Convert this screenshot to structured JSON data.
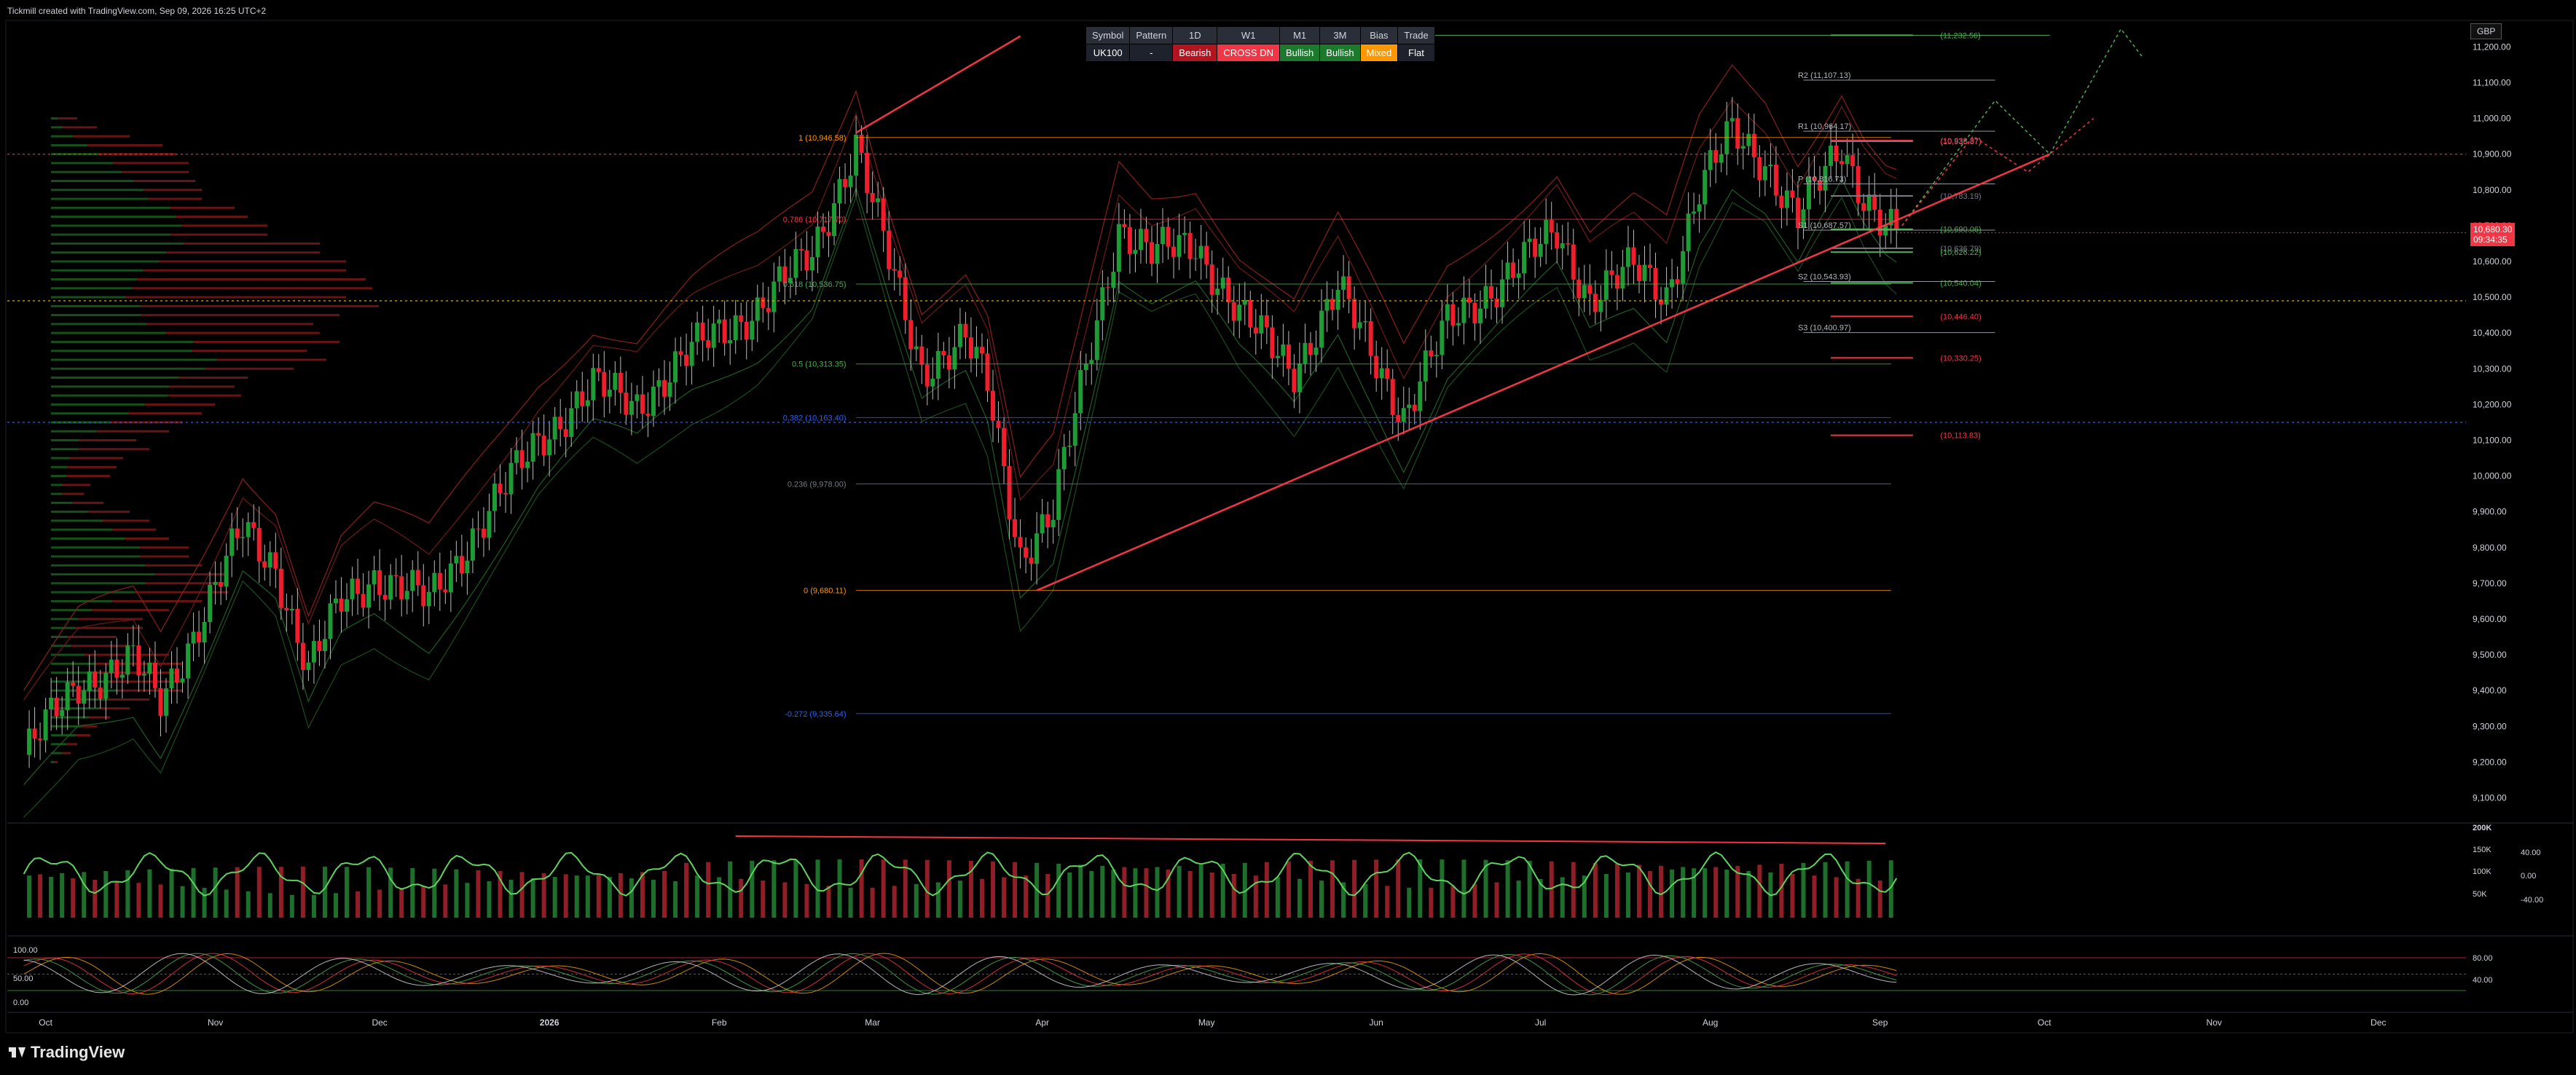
{
  "header": {
    "credit": "Tickmill created with TradingView.com, Sep 09, 2026 16:25 UTC+2"
  },
  "currency": "GBP",
  "status_table": {
    "headers": [
      "Symbol",
      "Pattern",
      "1D",
      "W1",
      "M1",
      "3M",
      "Bias",
      "Trade"
    ],
    "values": [
      "UK100",
      "-",
      "Bearish",
      "CROSS DN",
      "Bullish",
      "Bullish",
      "Mixed",
      "Flat"
    ],
    "colors": [
      "#1e222d",
      "#1e222d",
      "#b2151f",
      "#f23645",
      "#1b7a2c",
      "#1b7a2c",
      "#ff9800",
      "#1e222d"
    ]
  },
  "price_badge": {
    "price": "10,680.30",
    "countdown": "09:34:35"
  },
  "footer": {
    "brand": "TradingView"
  },
  "chart_data": {
    "type": "candlestick",
    "symbol": "UK100",
    "ylim": [
      9050,
      11270
    ],
    "y_ticks": [
      9100,
      9200,
      9300,
      9400,
      9500,
      9600,
      9700,
      9800,
      9900,
      10000,
      10100,
      10200,
      10300,
      10400,
      10500,
      10600,
      10700,
      10800,
      10900,
      11000,
      11100,
      11200
    ],
    "y_tick_labels": [
      "9,100.00",
      "9,200.00",
      "9,300.00",
      "9,400.00",
      "9,500.00",
      "9,600.00",
      "9,700.00",
      "9,800.00",
      "9,900.00",
      "10,000.00",
      "10,100.00",
      "10,200.00",
      "10,300.00",
      "10,400.00",
      "10,500.00",
      "10,600.00",
      "10,700.00",
      "10,800.00",
      "10,900.00",
      "11,000.00",
      "11,100.00",
      "11,200.00"
    ],
    "x_months": [
      {
        "label": "Oct",
        "day": 4
      },
      {
        "label": "Nov",
        "day": 35
      },
      {
        "label": "Dec",
        "day": 65
      },
      {
        "label": "2026",
        "day": 96
      },
      {
        "label": "Feb",
        "day": 127
      },
      {
        "label": "Mar",
        "day": 155
      },
      {
        "label": "Apr",
        "day": 186
      },
      {
        "label": "May",
        "day": 216
      },
      {
        "label": "Jun",
        "day": 247
      },
      {
        "label": "Jul",
        "day": 277
      },
      {
        "label": "Aug",
        "day": 308
      },
      {
        "label": "Sep",
        "day": 339
      },
      {
        "label": "Oct",
        "day": 369
      },
      {
        "label": "Nov",
        "day": 400
      },
      {
        "label": "Dec",
        "day": 430
      }
    ],
    "x_range_days": [
      -3,
      446
    ],
    "current_day": 342,
    "price_path": [
      [
        0,
        9220
      ],
      [
        10,
        9420
      ],
      [
        20,
        9480
      ],
      [
        25,
        9370
      ],
      [
        33,
        9620
      ],
      [
        40,
        9850
      ],
      [
        46,
        9750
      ],
      [
        52,
        9450
      ],
      [
        58,
        9650
      ],
      [
        64,
        9720
      ],
      [
        74,
        9650
      ],
      [
        84,
        9880
      ],
      [
        94,
        10100
      ],
      [
        104,
        10250
      ],
      [
        112,
        10200
      ],
      [
        122,
        10350
      ],
      [
        134,
        10470
      ],
      [
        144,
        10620
      ],
      [
        152,
        10930
      ],
      [
        158,
        10600
      ],
      [
        164,
        10300
      ],
      [
        172,
        10380
      ],
      [
        176,
        10250
      ],
      [
        182,
        9780
      ],
      [
        188,
        9900
      ],
      [
        194,
        10300
      ],
      [
        200,
        10700
      ],
      [
        206,
        10620
      ],
      [
        214,
        10650
      ],
      [
        222,
        10450
      ],
      [
        232,
        10300
      ],
      [
        240,
        10520
      ],
      [
        246,
        10350
      ],
      [
        252,
        10170
      ],
      [
        260,
        10420
      ],
      [
        270,
        10550
      ],
      [
        280,
        10680
      ],
      [
        286,
        10500
      ],
      [
        294,
        10580
      ],
      [
        300,
        10510
      ],
      [
        306,
        10800
      ],
      [
        312,
        10960
      ],
      [
        318,
        10880
      ],
      [
        324,
        10720
      ],
      [
        332,
        10920
      ],
      [
        336,
        10790
      ],
      [
        340,
        10700
      ],
      [
        342,
        10680
      ]
    ],
    "fib_levels": [
      {
        "label": "1 (10,946.58)",
        "value": 10946.58,
        "color": "#ff9800"
      },
      {
        "label": "0.786 (10,717.70)",
        "value": 10717.7,
        "color": "#f23645"
      },
      {
        "label": "0.618 (10,536.75)",
        "value": 10536.75,
        "color": "#4caf50"
      },
      {
        "label": "0.5 (10,313.35)",
        "value": 10313.35,
        "color": "#4caf50"
      },
      {
        "label": "0.382 (10,163.40)",
        "value": 10163.4,
        "color": "#2962ff"
      },
      {
        "label": "0.236 (9,978.00)",
        "value": 9978.0,
        "color": "#787b86"
      },
      {
        "label": "0 (9,680.11)",
        "value": 9680.11,
        "color": "#ff9800"
      },
      {
        "label": "-0.272 (9,335.64)",
        "value": 9335.64,
        "color": "#2962ff"
      }
    ],
    "pivots": [
      {
        "label": "R2 (11,107.13)",
        "value": 11107.13
      },
      {
        "label": "R1 (10,964.17)",
        "value": 10964.17
      },
      {
        "label": "P (10,816.73)",
        "value": 10816.73
      },
      {
        "label": "S1 (10,687.57)",
        "value": 10687.57
      },
      {
        "label": "S2 (10,543.93)",
        "value": 10543.93
      },
      {
        "label": "S3 (10,400.97)",
        "value": 10400.97
      }
    ],
    "targets": [
      {
        "label": "(11,232.56)",
        "value": 11232.56,
        "color": "#4caf50"
      },
      {
        "label": "(10,935.87)",
        "value": 10935.87,
        "color": "#787b86"
      },
      {
        "label": "(10,938.37)",
        "value": 10938.37,
        "color": "#f23645"
      },
      {
        "label": "(10,783.19)",
        "value": 10783.19,
        "color": "#787b86"
      },
      {
        "label": "(10,690.06)",
        "value": 10690.06,
        "color": "#4caf50"
      },
      {
        "label": "(10,636.79)",
        "value": 10636.79,
        "color": "#787b86"
      },
      {
        "label": "(10,626.22)",
        "value": 10626.22,
        "color": "#4caf50"
      },
      {
        "label": "(10,540.04)",
        "value": 10540.04,
        "color": "#4caf50"
      },
      {
        "label": "(10,446.40)",
        "value": 10446.4,
        "color": "#f23645"
      },
      {
        "label": "(10,330.25)",
        "value": 10330.25,
        "color": "#f23645"
      },
      {
        "label": "(10,113.83)",
        "value": 10113.83,
        "color": "#f23645"
      }
    ],
    "support_trendline": {
      "from": [
        185,
        9680
      ],
      "to": [
        370,
        10900
      ]
    },
    "resistance_trendline": {
      "from": [
        152,
        10960
      ],
      "to": [
        182,
        11230
      ]
    },
    "dotted_levels": [
      10900,
      10490,
      10150
    ],
    "volume_panel": {
      "y_tick_labels": [
        "200K",
        "150K",
        "100K",
        "50K"
      ],
      "osc_tick_labels": [
        "40.00",
        "0.00",
        "-40.00"
      ]
    },
    "stoch_panel": {
      "y_tick_labels": [
        "100.00",
        "50.00",
        "0.00"
      ],
      "right_tick_labels": [
        "80.00",
        "40.00"
      ]
    }
  }
}
